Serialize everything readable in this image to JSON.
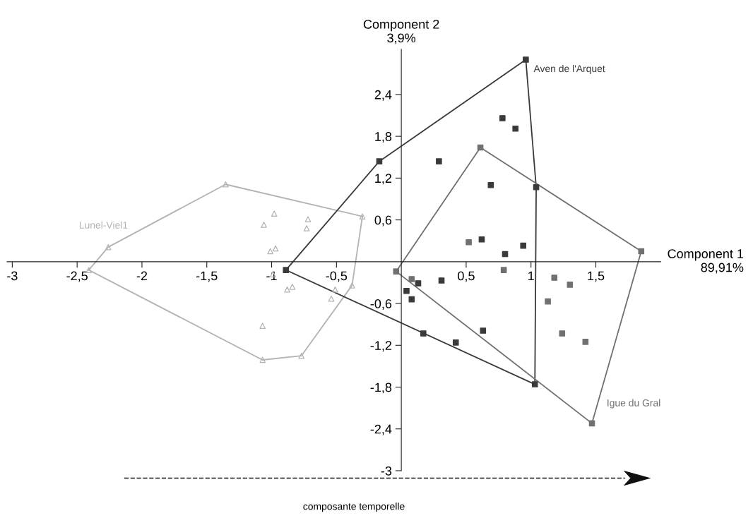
{
  "chart_data": {
    "type": "scatter",
    "xlabel": "Component 1\n89,91%",
    "ylabel": "Component 2\n3,9%",
    "xlim": [
      -3.04,
      2.0
    ],
    "ylim": [
      -3.0,
      3.05
    ],
    "xticks": [
      {
        "value": -3,
        "label": "-3"
      },
      {
        "value": -2.5,
        "label": "-2,5"
      },
      {
        "value": -2,
        "label": "-2"
      },
      {
        "value": -1.5,
        "label": "-1,5"
      },
      {
        "value": -1,
        "label": "-1"
      },
      {
        "value": -0.5,
        "label": "-0,5"
      },
      {
        "value": 0.5,
        "label": "0,5"
      },
      {
        "value": 1,
        "label": "1"
      },
      {
        "value": 1.5,
        "label": "1,5"
      }
    ],
    "yticks": [
      {
        "value": 2.4,
        "label": "2,4"
      },
      {
        "value": 1.8,
        "label": "1,8"
      },
      {
        "value": 1.2,
        "label": "1,2"
      },
      {
        "value": 0.6,
        "label": "0,6"
      },
      {
        "value": -0.6,
        "label": "-0,6"
      },
      {
        "value": -1.2,
        "label": "-1,2"
      },
      {
        "value": -1.8,
        "label": "-1,8"
      },
      {
        "value": -2.4,
        "label": "-2,4"
      },
      {
        "value": -3,
        "label": "-3"
      }
    ],
    "grid": false,
    "legend": false,
    "annotations": [
      "composante temporelle"
    ],
    "series": [
      {
        "type": "line",
        "marker": "none",
        "color": "#b3b3b3",
        "x": [
          -2.41,
          -2.26,
          -1.355,
          -0.3
        ],
        "values": [
          -0.12,
          0.21,
          1.11,
          0.65
        ]
      },
      {
        "type": "line",
        "marker": "none",
        "color": "#b3b3b3",
        "x": [
          -2.41,
          -1.07,
          -0.77,
          -0.38,
          -0.3
        ],
        "values": [
          -0.12,
          -1.41,
          -1.35,
          -0.34,
          0.65
        ]
      },
      {
        "type": "line",
        "marker": "none",
        "color": "#3a3a3a",
        "x": [
          -0.89,
          -0.17,
          0.96,
          1.04
        ],
        "values": [
          -0.12,
          1.44,
          2.9,
          1.07
        ]
      },
      {
        "type": "line",
        "marker": "none",
        "color": "#3a3a3a",
        "x": [
          -0.89,
          1.03,
          1.04
        ],
        "values": [
          -0.12,
          -1.76,
          1.07
        ]
      },
      {
        "type": "line",
        "marker": "none",
        "color": "#707070",
        "x": [
          -0.04,
          0.61,
          1.85
        ],
        "values": [
          -0.14,
          1.64,
          0.15
        ]
      },
      {
        "type": "line",
        "marker": "none",
        "color": "#707070",
        "x": [
          -0.04,
          1.47,
          1.85
        ],
        "values": [
          -0.14,
          -2.32,
          0.15
        ]
      },
      {
        "name": "Lunel-Viel1",
        "marker": "triangle",
        "color": "#b3b3b3",
        "x": [
          -1.355,
          -0.3,
          -2.26,
          -2.41,
          -1.07,
          -0.77,
          -0.38,
          -0.98,
          -1.06,
          -0.72,
          -0.73,
          -0.97,
          -1.01,
          -0.99,
          -0.84,
          -0.88,
          -0.51,
          -0.54,
          -1.07
        ],
        "values": [
          1.11,
          0.65,
          0.21,
          -0.12,
          -1.41,
          -1.35,
          -0.34,
          0.69,
          0.53,
          0.61,
          0.48,
          0.19,
          0.15,
          -0.18,
          -0.36,
          -0.4,
          -0.4,
          -0.53,
          -0.92
        ]
      },
      {
        "name": "Aven de l'Arquet",
        "marker": "square",
        "color": "#3a3a3a",
        "x": [
          -0.89,
          -0.17,
          0.96,
          1.04,
          1.03,
          0.78,
          0.88,
          0.29,
          0.69,
          0.62,
          0.8,
          0.94,
          0.13,
          0.31,
          0.04,
          0.08,
          0.17,
          0.42,
          0.63
        ],
        "values": [
          -0.12,
          1.44,
          2.9,
          1.07,
          -1.76,
          2.06,
          1.91,
          1.44,
          1.1,
          0.32,
          0.11,
          0.23,
          -0.31,
          -0.27,
          -0.42,
          -0.54,
          -1.03,
          -1.16,
          -0.99
        ]
      },
      {
        "name": "Igue du Gral",
        "marker": "square",
        "color": "#707070",
        "x": [
          -0.04,
          0.61,
          1.85,
          1.47,
          0.52,
          0.79,
          0.08,
          1.18,
          1.3,
          1.13,
          1.24,
          1.42
        ],
        "values": [
          -0.14,
          1.64,
          0.15,
          -2.32,
          0.28,
          -0.12,
          -0.25,
          -0.23,
          -0.33,
          -0.57,
          -1.03,
          -1.15
        ]
      }
    ]
  }
}
